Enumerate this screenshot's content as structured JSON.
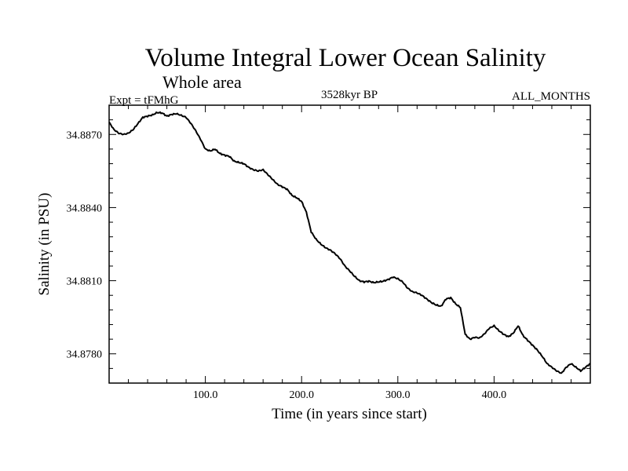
{
  "chart_data": {
    "type": "line",
    "title": "Volume Integral Lower Ocean Salinity",
    "subtitle": "Whole area",
    "experiment": "Expt = tFMhG",
    "period": "3528kyr BP",
    "months": "ALL_MONTHS",
    "xlabel": "Time (in years since start)",
    "ylabel": "Salinity (in PSU)",
    "xlim": [
      0,
      500
    ],
    "ylim": [
      34.8768,
      34.8882
    ],
    "xticks": [
      100,
      200,
      300,
      400
    ],
    "xtick_labels": [
      "100.0",
      "200.0",
      "300.0",
      "400.0"
    ],
    "yticks": [
      34.878,
      34.881,
      34.884,
      34.887
    ],
    "ytick_labels": [
      "34.8780",
      "34.8810",
      "34.8840",
      "34.8870"
    ],
    "series": [
      {
        "name": "Salinity",
        "x": [
          0,
          5,
          10,
          15,
          20,
          25,
          30,
          35,
          40,
          45,
          50,
          55,
          60,
          65,
          70,
          75,
          80,
          85,
          90,
          95,
          100,
          105,
          110,
          115,
          120,
          125,
          130,
          135,
          140,
          145,
          150,
          155,
          160,
          165,
          170,
          175,
          180,
          185,
          190,
          195,
          200,
          205,
          210,
          215,
          220,
          225,
          230,
          235,
          240,
          245,
          250,
          255,
          260,
          265,
          270,
          275,
          280,
          285,
          290,
          295,
          300,
          305,
          310,
          315,
          320,
          325,
          330,
          335,
          340,
          345,
          350,
          355,
          360,
          365,
          370,
          375,
          380,
          385,
          390,
          395,
          400,
          405,
          410,
          415,
          420,
          425,
          430,
          435,
          440,
          445,
          450,
          455,
          460,
          465,
          470,
          475,
          480,
          485,
          490,
          495,
          500
        ],
        "values": [
          34.8875,
          34.8872,
          34.88705,
          34.887,
          34.88705,
          34.8872,
          34.88745,
          34.8877,
          34.88775,
          34.8878,
          34.8879,
          34.88788,
          34.88775,
          34.88782,
          34.88785,
          34.88778,
          34.8877,
          34.88745,
          34.88715,
          34.8868,
          34.8864,
          34.88632,
          34.8864,
          34.88622,
          34.88615,
          34.8861,
          34.8859,
          34.88585,
          34.8858,
          34.88565,
          34.88555,
          34.8855,
          34.88555,
          34.88535,
          34.88515,
          34.88495,
          34.88485,
          34.88475,
          34.8845,
          34.8844,
          34.88425,
          34.8838,
          34.883,
          34.8827,
          34.8825,
          34.88235,
          34.88225,
          34.8821,
          34.8819,
          34.8816,
          34.8814,
          34.88118,
          34.881,
          34.88095,
          34.88098,
          34.88092,
          34.88095,
          34.88098,
          34.88105,
          34.88115,
          34.88108,
          34.88095,
          34.8807,
          34.88055,
          34.8805,
          34.8804,
          34.88025,
          34.8801,
          34.88,
          34.87995,
          34.88025,
          34.8803,
          34.88005,
          34.8799,
          34.8788,
          34.8786,
          34.87868,
          34.87865,
          34.87882,
          34.87905,
          34.87915,
          34.87895,
          34.8788,
          34.8787,
          34.87885,
          34.87915,
          34.87875,
          34.87855,
          34.87835,
          34.87815,
          34.8779,
          34.8776,
          34.87745,
          34.8773,
          34.8772,
          34.87745,
          34.8776,
          34.87745,
          34.8773,
          34.87745,
          34.8776
        ]
      }
    ]
  }
}
